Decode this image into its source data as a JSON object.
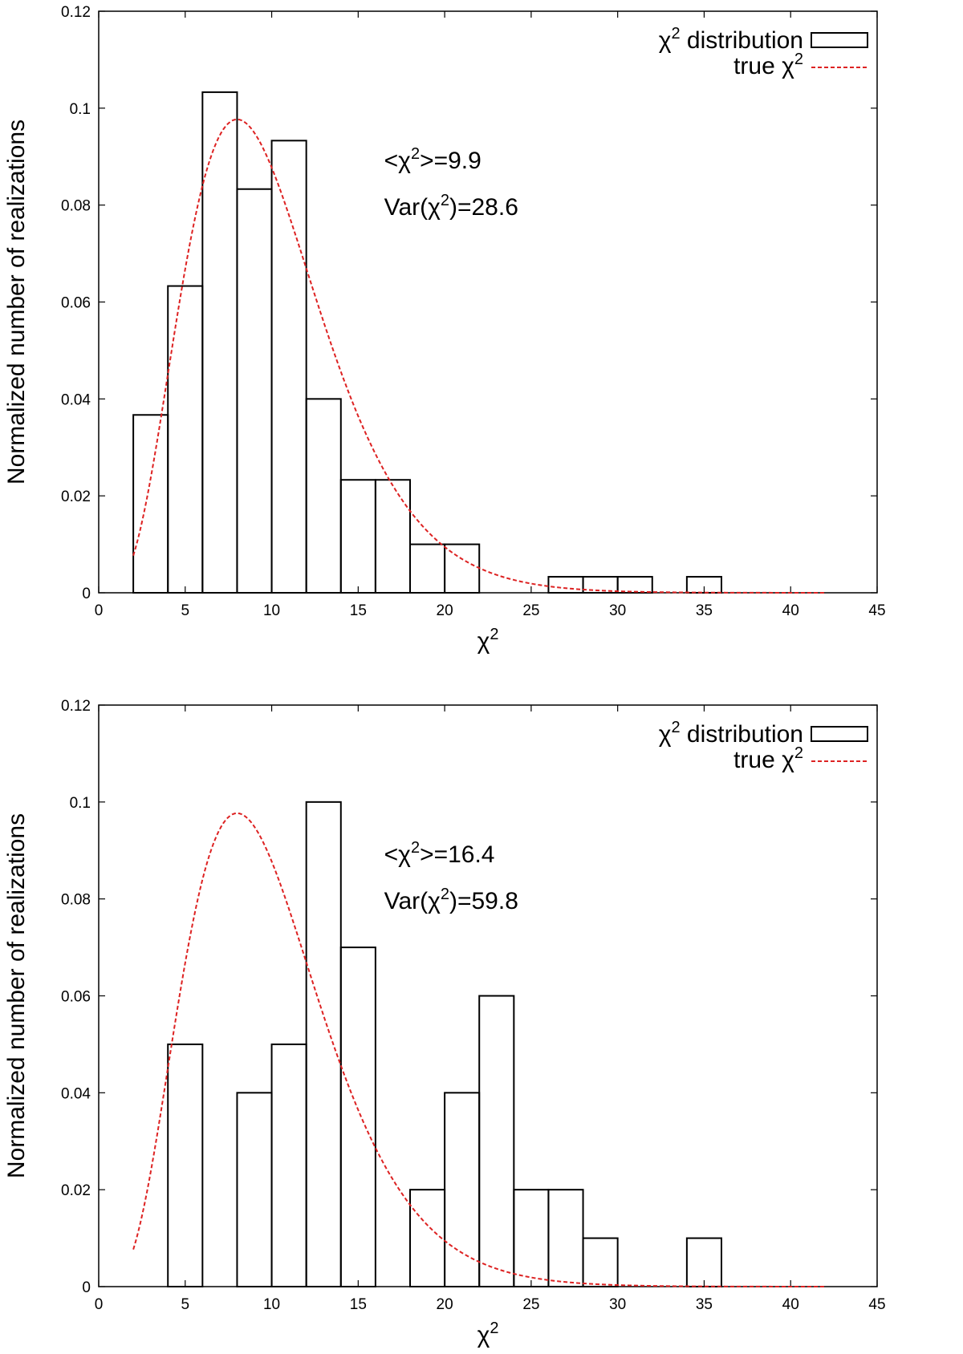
{
  "chart_data": [
    {
      "type": "bar",
      "xlabel": "χ",
      "xlabel_sup": "2",
      "ylabel": "Normalized number of realizations",
      "xlim": [
        0,
        45
      ],
      "ylim": [
        0,
        0.12
      ],
      "x_ticks": [
        "0",
        "5",
        "10",
        "15",
        "20",
        "25",
        "30",
        "35",
        "40",
        "45"
      ],
      "y_ticks": [
        "0",
        "0.02",
        "0.04",
        "0.06",
        "0.08",
        "0.1",
        "0.12"
      ],
      "legend_position": "top-right",
      "legend": [
        {
          "pre": "χ",
          "sup": "2",
          "post": " distribution",
          "style": "histogram box",
          "color": "#000000"
        },
        {
          "pre": "true χ",
          "sup": "2",
          "post": "",
          "style": "dashed line",
          "color": "#dd2222"
        }
      ],
      "annotations": [
        {
          "pre": "<χ",
          "sup": "2",
          "post": ">=9.9"
        },
        {
          "pre": "Var(χ",
          "sup": "2",
          "post": ")=28.6"
        }
      ],
      "series": [
        {
          "name": "χ2 distribution",
          "kind": "histogram",
          "bin_width": 2,
          "bins": [
            {
              "x0": 2,
              "value": 0.0367
            },
            {
              "x0": 4,
              "value": 0.0633
            },
            {
              "x0": 6,
              "value": 0.1033
            },
            {
              "x0": 8,
              "value": 0.0833
            },
            {
              "x0": 10,
              "value": 0.0933
            },
            {
              "x0": 12,
              "value": 0.04
            },
            {
              "x0": 14,
              "value": 0.0233
            },
            {
              "x0": 16,
              "value": 0.0233
            },
            {
              "x0": 18,
              "value": 0.01
            },
            {
              "x0": 20,
              "value": 0.01
            },
            {
              "x0": 26,
              "value": 0.0033
            },
            {
              "x0": 28,
              "value": 0.0033
            },
            {
              "x0": 30,
              "value": 0.0033
            },
            {
              "x0": 34,
              "value": 0.0033
            }
          ]
        },
        {
          "name": "true χ2",
          "kind": "curve",
          "distribution": "chi-squared",
          "dof": 10,
          "x_range": [
            2,
            42
          ]
        }
      ]
    },
    {
      "type": "bar",
      "xlabel": "χ",
      "xlabel_sup": "2",
      "ylabel": "Normalized number of realizations",
      "xlim": [
        0,
        45
      ],
      "ylim": [
        0,
        0.12
      ],
      "x_ticks": [
        "0",
        "5",
        "10",
        "15",
        "20",
        "25",
        "30",
        "35",
        "40",
        "45"
      ],
      "y_ticks": [
        "0",
        "0.02",
        "0.04",
        "0.06",
        "0.08",
        "0.1",
        "0.12"
      ],
      "legend_position": "top-right",
      "legend": [
        {
          "pre": "χ",
          "sup": "2",
          "post": " distribution",
          "style": "histogram box",
          "color": "#000000"
        },
        {
          "pre": "true χ",
          "sup": "2",
          "post": "",
          "style": "dashed line",
          "color": "#dd2222"
        }
      ],
      "annotations": [
        {
          "pre": "<χ",
          "sup": "2",
          "post": ">=16.4"
        },
        {
          "pre": "Var(χ",
          "sup": "2",
          "post": ")=59.8"
        }
      ],
      "series": [
        {
          "name": "χ2 distribution",
          "kind": "histogram",
          "bin_width": 2,
          "bins": [
            {
              "x0": 4,
              "value": 0.05
            },
            {
              "x0": 8,
              "value": 0.04
            },
            {
              "x0": 10,
              "value": 0.05
            },
            {
              "x0": 12,
              "value": 0.1
            },
            {
              "x0": 14,
              "value": 0.07
            },
            {
              "x0": 18,
              "value": 0.02
            },
            {
              "x0": 20,
              "value": 0.04
            },
            {
              "x0": 22,
              "value": 0.06
            },
            {
              "x0": 24,
              "value": 0.02
            },
            {
              "x0": 26,
              "value": 0.02
            },
            {
              "x0": 28,
              "value": 0.01
            },
            {
              "x0": 34,
              "value": 0.01
            }
          ]
        },
        {
          "name": "true χ2",
          "kind": "curve",
          "distribution": "chi-squared",
          "dof": 10,
          "x_range": [
            2,
            42
          ]
        }
      ]
    }
  ]
}
